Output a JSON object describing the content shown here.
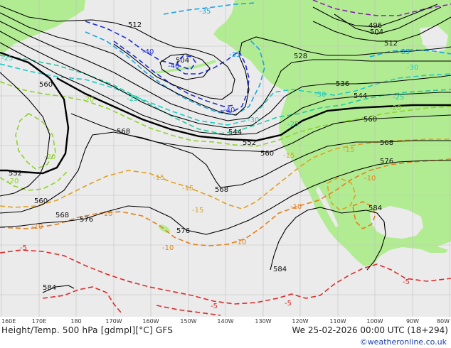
{
  "title": "Height/Temp. 500 hPa [gdmpl][°C] GFS",
  "date": "We 25-02-2026 00:00 UTC (18+294)",
  "credit": "©weatheronline.co.uk",
  "lon_labels": [
    "160E",
    "170E",
    "180",
    "170W",
    "160W",
    "150W",
    "140W",
    "130W",
    "120W",
    "110W",
    "100W",
    "90W",
    "80W"
  ],
  "height_labels": [
    "512",
    "504",
    "504",
    "496",
    "512",
    "528",
    "536",
    "544",
    "544",
    "552",
    "552",
    "560",
    "560",
    "560",
    "560",
    "568",
    "568",
    "568",
    "568",
    "576",
    "576",
    "576",
    "584",
    "584",
    "584"
  ],
  "temp_labels": [
    "-35",
    "-40",
    "-40",
    "-35",
    "-30",
    "-30",
    "-25",
    "-25",
    "-25",
    "-20",
    "-20",
    "-20",
    "-20",
    "-15",
    "-15",
    "-15",
    "-15",
    "-15",
    "-10",
    "-10",
    "-10",
    "-10",
    "-10",
    "-10",
    "-5",
    "-5",
    "-5",
    "-5",
    "-25",
    "-30",
    "-35",
    "-40"
  ],
  "colors": {
    "land": "#b2ec92",
    "ocean": "#ebebeb",
    "grid": "#c0c0c0",
    "height_contour": "#000000",
    "temp_minus40": "#1f2fd8",
    "temp_minus35": "#1aa3e6",
    "temp_minus30": "#20c9c9",
    "temp_minus25": "#22c9a0",
    "temp_minus20": "#8fd22a",
    "temp_minus15": "#e0a020",
    "temp_minus10": "#e57f1c",
    "temp_minus5": "#e02a2a",
    "temp_minus45": "#8b1fb5"
  }
}
